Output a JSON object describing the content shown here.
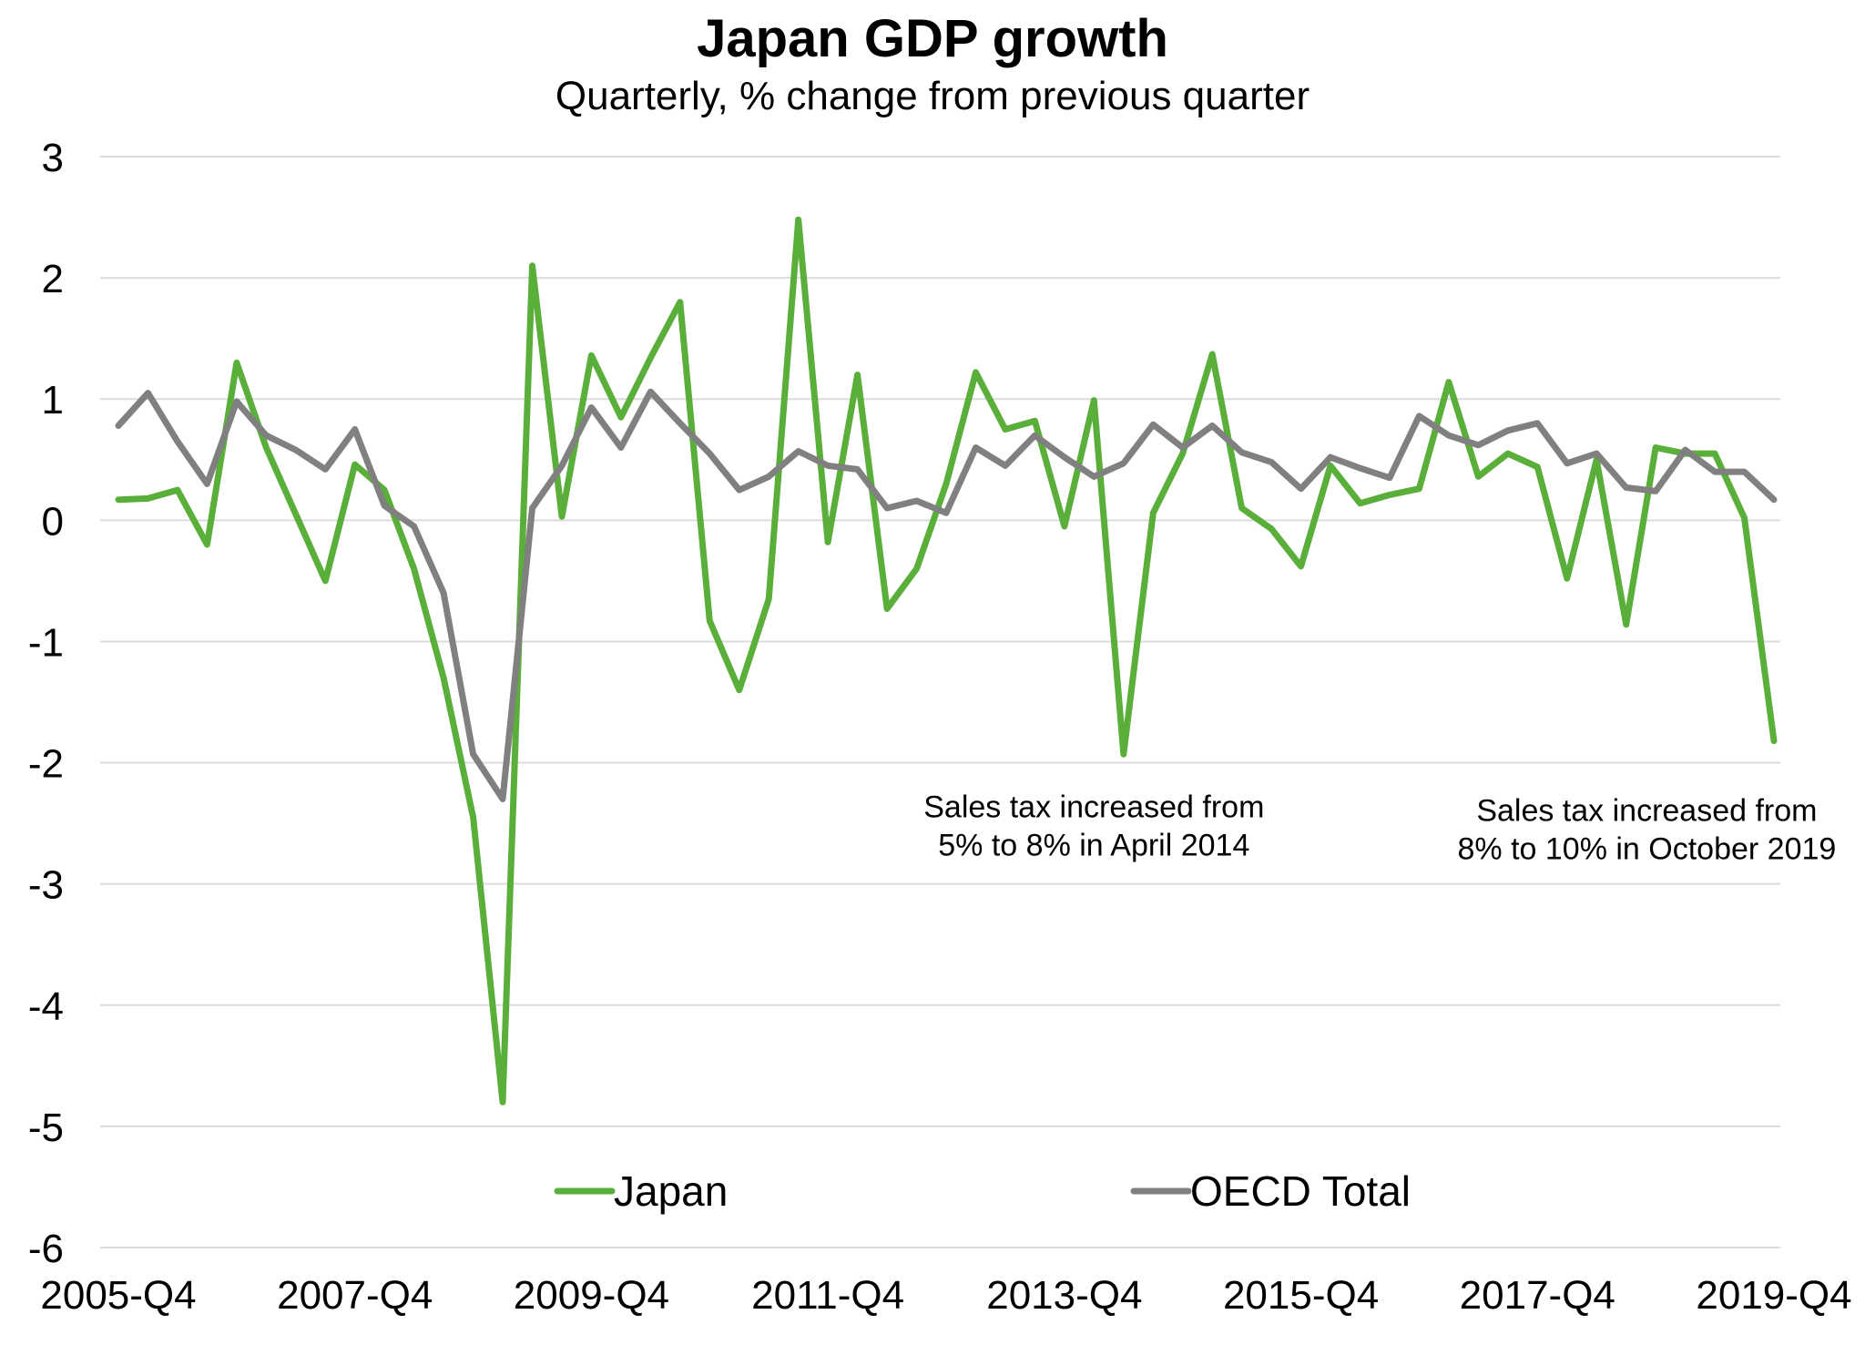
{
  "chart_data": {
    "type": "line",
    "title": "Japan GDP growth",
    "subtitle": "Quarterly, % change from previous quarter",
    "xlabel": "",
    "ylabel": "",
    "ylim": [
      -6,
      3
    ],
    "yticks": [
      3,
      2,
      1,
      0,
      -1,
      -2,
      -3,
      -4,
      -5,
      -6
    ],
    "grid": true,
    "legend_position": "bottom",
    "x": [
      "2005-Q4",
      "2006-Q1",
      "2006-Q2",
      "2006-Q3",
      "2006-Q4",
      "2007-Q1",
      "2007-Q2",
      "2007-Q3",
      "2007-Q4",
      "2008-Q1",
      "2008-Q2",
      "2008-Q3",
      "2008-Q4",
      "2009-Q1",
      "2009-Q2",
      "2009-Q3",
      "2009-Q4",
      "2010-Q1",
      "2010-Q2",
      "2010-Q3",
      "2010-Q4",
      "2011-Q1",
      "2011-Q2",
      "2011-Q3",
      "2011-Q4",
      "2012-Q1",
      "2012-Q2",
      "2012-Q3",
      "2012-Q4",
      "2013-Q1",
      "2013-Q2",
      "2013-Q3",
      "2013-Q4",
      "2014-Q1",
      "2014-Q2",
      "2014-Q3",
      "2014-Q4",
      "2015-Q1",
      "2015-Q2",
      "2015-Q3",
      "2015-Q4",
      "2016-Q1",
      "2016-Q2",
      "2016-Q3",
      "2016-Q4",
      "2017-Q1",
      "2017-Q2",
      "2017-Q3",
      "2017-Q4",
      "2018-Q1",
      "2018-Q2",
      "2018-Q3",
      "2018-Q4",
      "2019-Q1",
      "2019-Q2",
      "2019-Q3",
      "2019-Q4"
    ],
    "xtick_labels": [
      "2005-Q4",
      "2007-Q4",
      "2009-Q4",
      "2011-Q4",
      "2013-Q4",
      "2015-Q4",
      "2017-Q4",
      "2019-Q4"
    ],
    "series": [
      {
        "name": "Japan",
        "color": "#5aae3a",
        "values": [
          0.17,
          0.18,
          0.25,
          -0.2,
          1.3,
          0.6,
          0.05,
          -0.5,
          0.46,
          0.25,
          -0.4,
          -1.3,
          -2.45,
          -4.8,
          2.1,
          0.03,
          1.36,
          0.85,
          1.34,
          1.8,
          -0.83,
          -1.4,
          -0.65,
          2.48,
          -0.18,
          1.2,
          -0.73,
          -0.4,
          0.3,
          1.22,
          0.75,
          0.82,
          -0.05,
          0.99,
          -1.93,
          0.06,
          0.55,
          1.37,
          0.1,
          -0.07,
          -0.38,
          0.45,
          0.14,
          0.21,
          0.26,
          1.14,
          0.36,
          0.55,
          0.44,
          -0.48,
          0.5,
          -0.86,
          0.6,
          0.55,
          0.55,
          0.02,
          -1.82
        ]
      },
      {
        "name": "OECD Total",
        "color": "#808080",
        "values": [
          0.78,
          1.05,
          0.65,
          0.3,
          0.98,
          0.7,
          0.58,
          0.42,
          0.75,
          0.12,
          -0.05,
          -0.6,
          -1.93,
          -2.3,
          0.1,
          0.45,
          0.93,
          0.6,
          1.06,
          0.8,
          0.55,
          0.25,
          0.36,
          0.57,
          0.45,
          0.42,
          0.1,
          0.16,
          0.06,
          0.6,
          0.45,
          0.7,
          0.52,
          0.36,
          0.47,
          0.79,
          0.6,
          0.78,
          0.56,
          0.48,
          0.26,
          0.52,
          0.43,
          0.35,
          0.86,
          0.7,
          0.62,
          0.74,
          0.8,
          0.47,
          0.55,
          0.27,
          0.24,
          0.58,
          0.4,
          0.4,
          0.17
        ]
      }
    ],
    "annotations": [
      {
        "lines": [
          "Sales tax increased from",
          "5% to 8% in April 2014"
        ],
        "anchor_x_index": 33,
        "anchor_y": -2.45
      },
      {
        "lines": [
          "Sales tax increased from",
          "8% to 10% in October 2019"
        ],
        "anchor_x_index": 51.7,
        "anchor_y": -2.48
      }
    ]
  }
}
